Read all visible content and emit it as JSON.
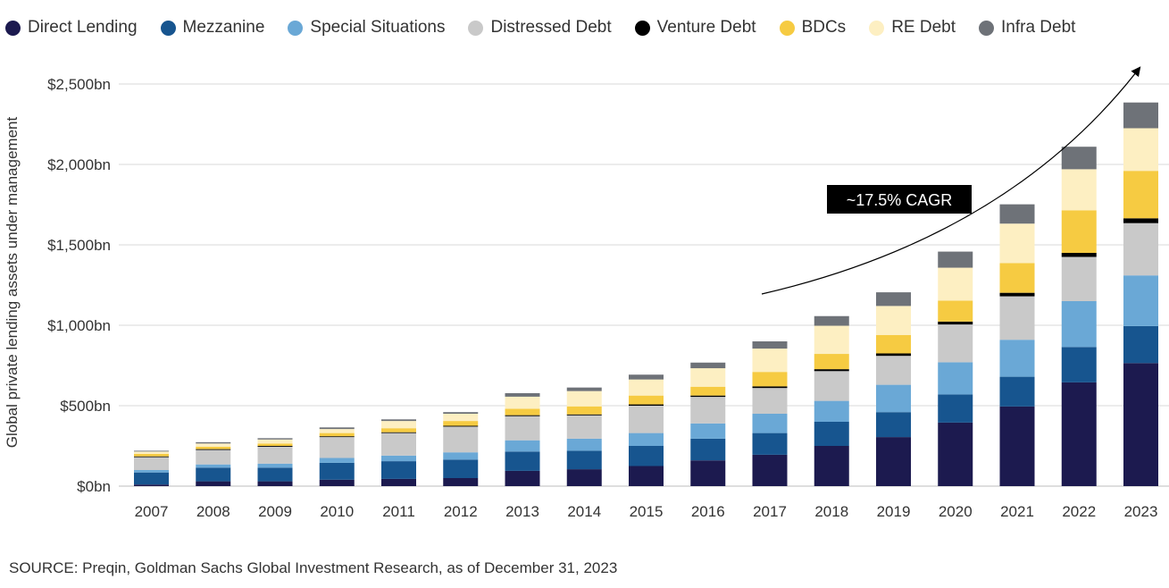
{
  "source": "SOURCE: Preqin, Goldman Sachs Global Investment Research, as of December 31, 2023",
  "chart_data": {
    "type": "bar",
    "stacked": true,
    "title": "",
    "xlabel": "",
    "ylabel": "Global private lending assets under management",
    "ylim": [
      0,
      2500
    ],
    "yticks": [
      0,
      500,
      1000,
      1500,
      2000,
      2500
    ],
    "ytick_labels": [
      "$0bn",
      "$500bn",
      "$1,000bn",
      "$1,500bn",
      "$2,000bn",
      "$2,500bn"
    ],
    "grid": "horizontal",
    "legend_position": "top",
    "categories": [
      "2007",
      "2008",
      "2009",
      "2010",
      "2011",
      "2012",
      "2013",
      "2014",
      "2015",
      "2016",
      "2017",
      "2018",
      "2019",
      "2020",
      "2021",
      "2022",
      "2023"
    ],
    "series": [
      {
        "name": "Direct Lending",
        "color": "#1c1a4f",
        "values": [
          10,
          30,
          30,
          40,
          45,
          50,
          95,
          105,
          125,
          160,
          195,
          250,
          305,
          395,
          495,
          645,
          765
        ]
      },
      {
        "name": "Mezzanine",
        "color": "#17558f",
        "values": [
          75,
          85,
          85,
          105,
          110,
          115,
          120,
          115,
          125,
          135,
          135,
          150,
          155,
          175,
          185,
          220,
          230
        ]
      },
      {
        "name": "Special Situations",
        "color": "#6aa8d6",
        "values": [
          15,
          20,
          25,
          30,
          35,
          45,
          70,
          75,
          80,
          95,
          120,
          130,
          170,
          200,
          230,
          285,
          315
        ]
      },
      {
        "name": "Distressed Debt",
        "color": "#c9c9c9",
        "values": [
          80,
          90,
          105,
          130,
          140,
          160,
          150,
          145,
          170,
          165,
          160,
          185,
          180,
          235,
          270,
          275,
          325
        ]
      },
      {
        "name": "Venture Debt",
        "color": "#000000",
        "values": [
          5,
          5,
          5,
          5,
          5,
          5,
          6,
          6,
          8,
          8,
          10,
          12,
          15,
          18,
          22,
          25,
          30
        ]
      },
      {
        "name": "BDCs",
        "color": "#f6cb42",
        "values": [
          15,
          15,
          15,
          20,
          25,
          30,
          40,
          50,
          55,
          55,
          90,
          95,
          115,
          130,
          185,
          265,
          295
        ]
      },
      {
        "name": "RE Debt",
        "color": "#fdefc2",
        "values": [
          15,
          20,
          25,
          25,
          45,
          45,
          75,
          95,
          100,
          115,
          145,
          175,
          180,
          205,
          245,
          255,
          265
        ]
      },
      {
        "name": "Infra Debt",
        "color": "#6e7278",
        "values": [
          5,
          8,
          8,
          10,
          10,
          10,
          22,
          22,
          30,
          35,
          45,
          60,
          85,
          100,
          120,
          140,
          160
        ]
      }
    ],
    "annotations": [
      {
        "text": "~17.5% CAGR",
        "style": "label-box-with-curved-arrow"
      }
    ]
  }
}
